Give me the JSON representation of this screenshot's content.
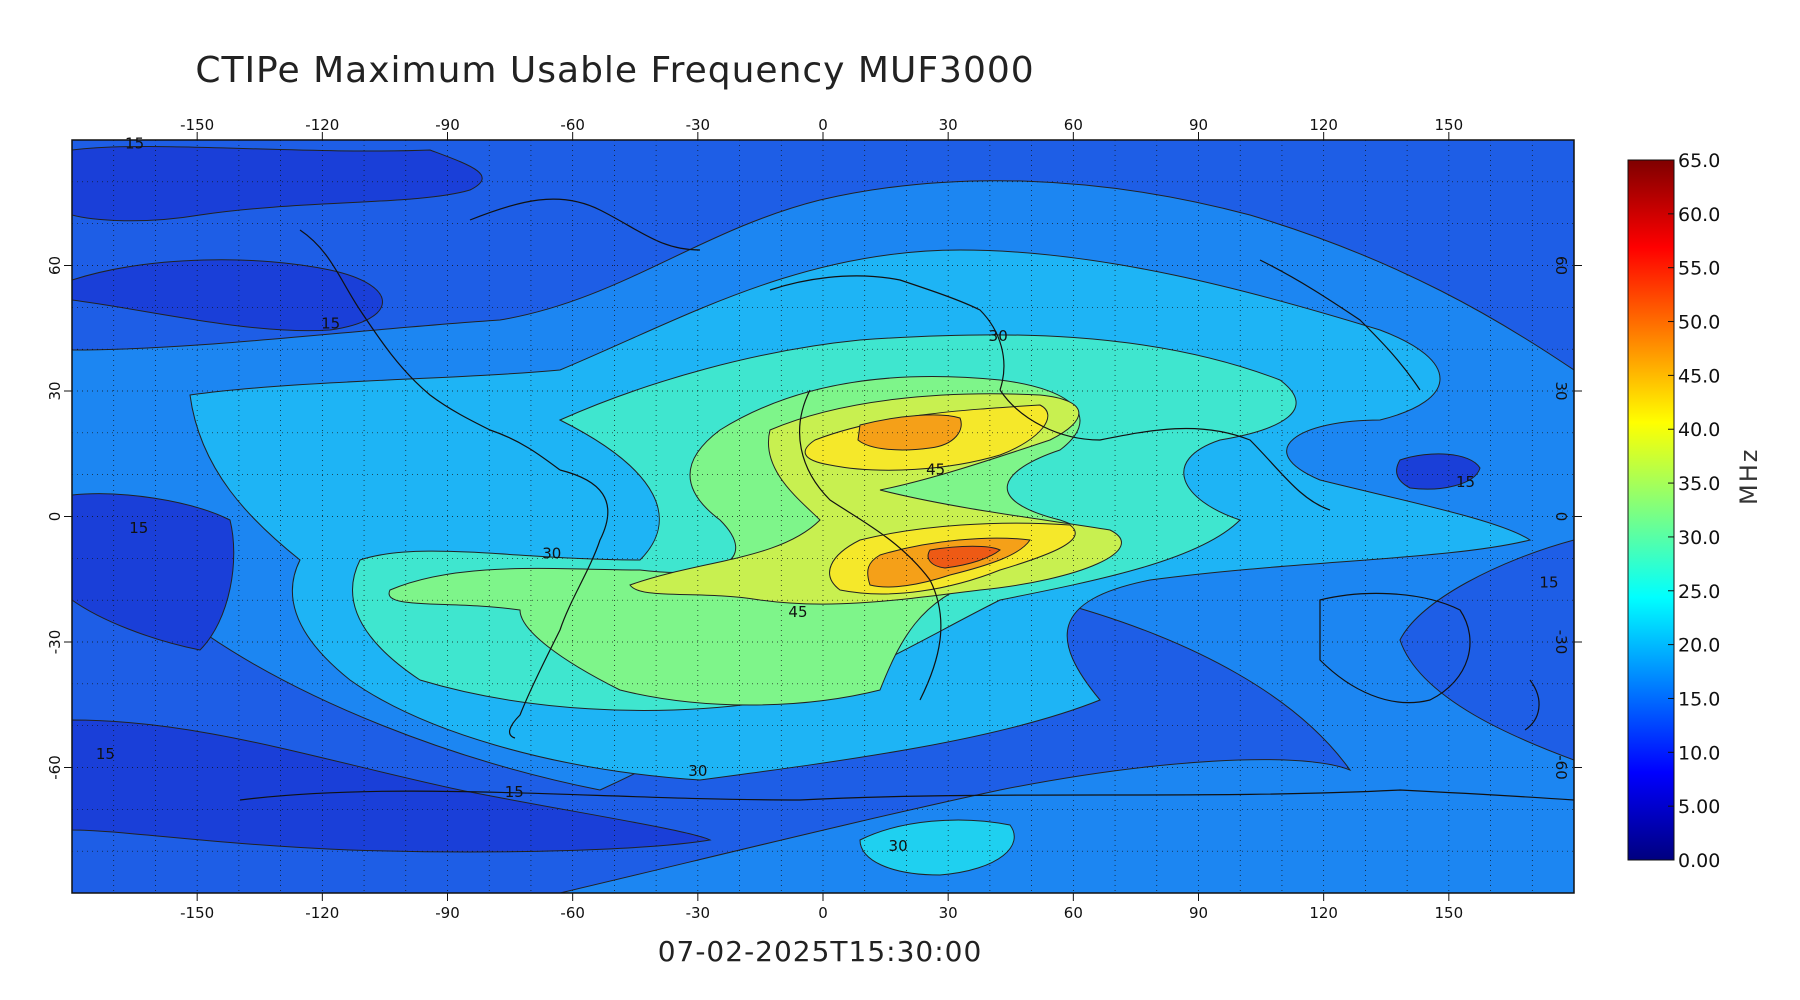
{
  "title": "CTIPe Maximum Usable Frequency MUF3000",
  "timestamp": "07-02-2025T15:30:00",
  "map": {
    "lon_ticks": [
      "-150",
      "-120",
      "-90",
      "-60",
      "-30",
      "0",
      "30",
      "60",
      "90",
      "120",
      "150"
    ],
    "lat_ticks": [
      "60",
      "30",
      "0",
      "-30",
      "-60"
    ],
    "contour_labels": [
      {
        "text": "15",
        "lon": -118,
        "lat": 45
      },
      {
        "text": "15",
        "lon": -164,
        "lat": -4
      },
      {
        "text": "15",
        "lon": -172,
        "lat": -58
      },
      {
        "text": "15",
        "lon": -74,
        "lat": -67
      },
      {
        "text": "15",
        "lon": 154,
        "lat": 7
      },
      {
        "text": "15",
        "lon": 174,
        "lat": -17
      },
      {
        "text": "15",
        "lon": -165,
        "lat": 88
      },
      {
        "text": "30",
        "lon": 42,
        "lat": 42
      },
      {
        "text": "30",
        "lon": -65,
        "lat": -10
      },
      {
        "text": "30",
        "lon": -30,
        "lat": -62
      },
      {
        "text": "30",
        "lon": 18,
        "lat": -80
      },
      {
        "text": "45",
        "lon": 27,
        "lat": 10
      },
      {
        "text": "45",
        "lon": -6,
        "lat": -24
      }
    ],
    "levels_colors": [
      "#1a3fd8",
      "#1c6ff0",
      "#1ea2f5",
      "#1fd0f0",
      "#3ff0c8",
      "#7ef58a",
      "#c8f050",
      "#f5f020",
      "#f5a818",
      "#f06018"
    ]
  },
  "colorbar": {
    "unit": "MHz",
    "ticks": [
      "0.00",
      "5.00",
      "10.0",
      "15.0",
      "20.0",
      "25.0",
      "30.0",
      "35.0",
      "40.0",
      "45.0",
      "50.0",
      "55.0",
      "60.0",
      "65.0"
    ],
    "min": 0,
    "max": 65,
    "colors": [
      "#00007f",
      "#0000ff",
      "#007fff",
      "#00ffff",
      "#7fff7f",
      "#ffff00",
      "#ff7f00",
      "#ff0000",
      "#7f0000"
    ]
  }
}
